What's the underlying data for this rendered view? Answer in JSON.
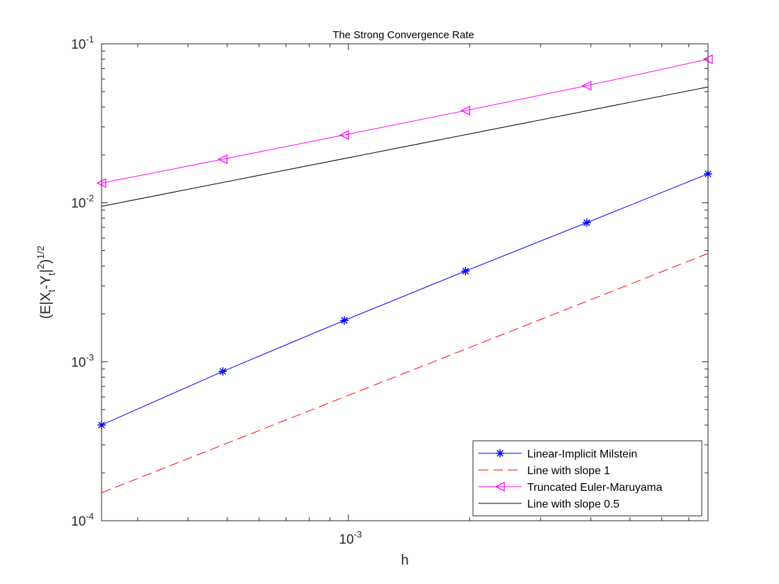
{
  "chart_data": {
    "type": "line",
    "title": "The Strong Convergence Rate",
    "xlabel": "h",
    "ylabel": "(E|X_t-Y_t|^2)^(1/2)",
    "x_scale": "log",
    "y_scale": "log",
    "xlim": [
      0.000244,
      0.0078125
    ],
    "ylim": [
      0.0001,
      0.1
    ],
    "grid": false,
    "legend_position": "bottom-right",
    "x_ticks": [
      {
        "value": 0.001,
        "base": "10",
        "exp": "-3"
      }
    ],
    "y_ticks": [
      {
        "value": 0.0001,
        "base": "10",
        "exp": "-4"
      },
      {
        "value": 0.001,
        "base": "10",
        "exp": "-3"
      },
      {
        "value": 0.01,
        "base": "10",
        "exp": "-2"
      },
      {
        "value": 0.1,
        "base": "10",
        "exp": "-1"
      }
    ],
    "series": [
      {
        "name": "Linear-Implicit Milstein",
        "color": "#0000ff",
        "line": "solid",
        "marker": "star",
        "x": [
          0.000244,
          0.000488,
          0.000977,
          0.001953,
          0.003906,
          0.007813
        ],
        "y": [
          0.0004,
          0.00087,
          0.00182,
          0.00372,
          0.0075,
          0.0152
        ]
      },
      {
        "name": "Line with slope 1",
        "color": "#ff0000",
        "line": "dashed",
        "marker": "none",
        "x": [
          0.000244,
          0.007813
        ],
        "y": [
          0.00015,
          0.0048
        ]
      },
      {
        "name": "Truncated Euler-Maruyama",
        "color": "#ff00ff",
        "line": "solid",
        "marker": "triangle-left",
        "x": [
          0.000244,
          0.000488,
          0.000977,
          0.001953,
          0.003906,
          0.007813
        ],
        "y": [
          0.0133,
          0.0188,
          0.0267,
          0.038,
          0.0545,
          0.08
        ]
      },
      {
        "name": "Line with slope 0.5",
        "color": "#000000",
        "line": "solid",
        "marker": "none",
        "x": [
          0.000244,
          0.007813
        ],
        "y": [
          0.0095,
          0.0535
        ]
      }
    ]
  }
}
